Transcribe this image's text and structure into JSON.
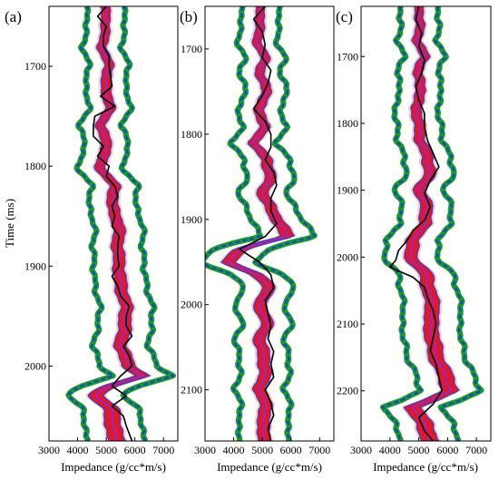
{
  "figure": {
    "ylabel": "Time (ms)",
    "xlabel_common": "Impedance (g/cc*m/s)"
  },
  "colors": {
    "band_outer": "#1a9a2e",
    "band_outer_soft": "#7fd88a",
    "band_mid": "#1e3fc8",
    "band_inner": "#e0182d",
    "band_inner_soft": "#f4a0a8",
    "core": "#8a2be2",
    "true_log": "#000000"
  },
  "chart_data": [
    {
      "type": "line",
      "panel_label": "(a)",
      "xlabel": "Impedance (g/cc*m/s)",
      "ylabel": "Time (ms)",
      "xlim": [
        3000,
        7500
      ],
      "ylim": [
        1640,
        2075
      ],
      "y_inverted": true,
      "xticks": [
        "3000",
        "4000",
        "5000",
        "6000",
        "7000"
      ],
      "yticks": [
        "1700",
        "1800",
        "1900",
        "2000"
      ],
      "ytick_values": [
        1700,
        1800,
        1900,
        2000
      ],
      "profile": {
        "t": [
          1640,
          1660,
          1680,
          1700,
          1720,
          1740,
          1760,
          1780,
          1800,
          1820,
          1840,
          1860,
          1880,
          1900,
          1920,
          1940,
          1960,
          1980,
          2000,
          2010,
          2020,
          2030,
          2045,
          2060,
          2075
        ],
        "mean": [
          4950,
          5000,
          4850,
          5100,
          4950,
          5150,
          4800,
          5050,
          4750,
          5300,
          5200,
          5450,
          5400,
          5450,
          5500,
          5700,
          5650,
          5500,
          5800,
          6250,
          5100,
          4600,
          5250,
          5200,
          5400
        ],
        "inner_halfwidth": [
          150,
          150,
          160,
          160,
          170,
          170,
          170,
          180,
          180,
          190,
          190,
          200,
          200,
          200,
          210,
          210,
          220,
          220,
          230,
          250,
          260,
          270,
          280,
          280,
          280
        ],
        "outer_halfwidth": [
          650,
          660,
          680,
          690,
          700,
          720,
          740,
          760,
          780,
          800,
          820,
          840,
          860,
          880,
          900,
          920,
          940,
          960,
          1000,
          1050,
          1000,
          950,
          980,
          1000,
          1000
        ]
      },
      "true_log": {
        "t": [
          1640,
          1650,
          1660,
          1670,
          1680,
          1690,
          1700,
          1710,
          1720,
          1730,
          1740,
          1750,
          1760,
          1770,
          1780,
          1790,
          1800,
          1810,
          1820,
          1830,
          1840,
          1850,
          1860,
          1870,
          1880,
          1890,
          1900,
          1910,
          1920,
          1930,
          1940,
          1950,
          1960,
          1970,
          1980,
          1990,
          2000,
          2010,
          2020,
          2030,
          2040,
          2050,
          2060,
          2075
        ],
        "values": [
          5000,
          4700,
          5000,
          4900,
          4900,
          5100,
          5100,
          5150,
          5200,
          4800,
          5300,
          4600,
          4550,
          4550,
          4900,
          4700,
          5100,
          5000,
          5300,
          5400,
          5200,
          5300,
          5200,
          5450,
          5400,
          5400,
          5450,
          5200,
          5400,
          5500,
          5800,
          5700,
          5700,
          5900,
          5600,
          5800,
          5900,
          5500,
          5200,
          5700,
          5200,
          5600,
          5700,
          5900
        ]
      }
    },
    {
      "type": "line",
      "panel_label": "(b)",
      "xlabel": "Impedance (g/cc*m/s)",
      "ylabel": "",
      "xlim": [
        3000,
        7500
      ],
      "ylim": [
        1650,
        2160
      ],
      "y_inverted": true,
      "xticks": [
        "3000",
        "4000",
        "5000",
        "6000",
        "7000"
      ],
      "yticks": [
        "1700",
        "1800",
        "1900",
        "2000",
        "2100"
      ],
      "ytick_values": [
        1700,
        1800,
        1900,
        2000,
        2100
      ],
      "profile": {
        "t": [
          1650,
          1670,
          1690,
          1710,
          1730,
          1750,
          1770,
          1790,
          1810,
          1830,
          1850,
          1870,
          1890,
          1905,
          1920,
          1935,
          1950,
          1965,
          1980,
          2000,
          2020,
          2040,
          2060,
          2080,
          2100,
          2120,
          2140,
          2160
        ],
        "mean": [
          4900,
          4950,
          4800,
          5100,
          4900,
          5200,
          4850,
          5100,
          4700,
          5150,
          5300,
          5000,
          5350,
          5600,
          5900,
          4200,
          3800,
          4800,
          5300,
          4850,
          5200,
          4900,
          5050,
          5100,
          4900,
          5150,
          5000,
          5100
        ],
        "inner_halfwidth": [
          140,
          150,
          150,
          160,
          160,
          170,
          170,
          180,
          180,
          190,
          190,
          200,
          200,
          220,
          240,
          250,
          240,
          230,
          220,
          210,
          210,
          210,
          210,
          210,
          210,
          210,
          210,
          210
        ],
        "outer_halfwidth": [
          650,
          660,
          680,
          700,
          710,
          720,
          740,
          760,
          780,
          800,
          820,
          840,
          860,
          900,
          950,
          980,
          950,
          900,
          880,
          860,
          860,
          860,
          860,
          860,
          860,
          860,
          860,
          860
        ]
      },
      "true_log": {
        "t": [
          1650,
          1665,
          1680,
          1695,
          1710,
          1725,
          1740,
          1755,
          1770,
          1785,
          1800,
          1815,
          1830,
          1845,
          1860,
          1875,
          1890,
          1905,
          1920,
          1935,
          1950,
          1965,
          1980,
          1995,
          2010,
          2025,
          2040,
          2055,
          2070,
          2085,
          2100,
          2115,
          2130,
          2145,
          2160
        ],
        "values": [
          5100,
          4700,
          5000,
          5100,
          5000,
          5300,
          5200,
          5000,
          4700,
          5100,
          5300,
          5300,
          5100,
          5400,
          5500,
          5300,
          5300,
          5500,
          5100,
          4200,
          4900,
          5300,
          5400,
          5100,
          5200,
          5300,
          5200,
          5400,
          5300,
          5400,
          5100,
          5300,
          5400,
          5200,
          5300
        ]
      }
    },
    {
      "type": "line",
      "panel_label": "(c)",
      "xlabel": "Impedance (g/cc*m/s)",
      "ylabel": "",
      "xlim": [
        3000,
        7500
      ],
      "ylim": [
        1625,
        2275
      ],
      "y_inverted": true,
      "xticks": [
        "3000",
        "4000",
        "5000",
        "6000",
        "7000"
      ],
      "yticks": [
        "1700",
        "1800",
        "1900",
        "2000",
        "2100",
        "2200"
      ],
      "ytick_values": [
        1700,
        1800,
        1900,
        2000,
        2100,
        2200
      ],
      "profile": {
        "t": [
          1625,
          1650,
          1675,
          1700,
          1725,
          1750,
          1775,
          1800,
          1825,
          1850,
          1875,
          1900,
          1925,
          1950,
          1975,
          2000,
          2025,
          2050,
          2075,
          2100,
          2125,
          2150,
          2175,
          2200,
          2225,
          2250,
          2275
        ],
        "mean": [
          5000,
          5050,
          4950,
          5200,
          4950,
          5100,
          4900,
          5000,
          5050,
          5300,
          5400,
          5000,
          5300,
          5200,
          4800,
          4700,
          5250,
          5350,
          5500,
          5400,
          5500,
          5600,
          5900,
          6100,
          4800,
          5200,
          5400
        ],
        "inner_halfwidth": [
          140,
          150,
          150,
          160,
          160,
          170,
          170,
          180,
          180,
          190,
          200,
          200,
          210,
          210,
          220,
          220,
          230,
          240,
          250,
          250,
          260,
          260,
          270,
          280,
          290,
          290,
          290
        ],
        "outer_halfwidth": [
          650,
          660,
          680,
          700,
          710,
          720,
          740,
          760,
          780,
          800,
          820,
          840,
          860,
          880,
          900,
          920,
          950,
          980,
          1000,
          1000,
          1000,
          1000,
          1000,
          1050,
          1000,
          1000,
          1000
        ]
      },
      "true_log": {
        "t": [
          1625,
          1645,
          1665,
          1685,
          1705,
          1725,
          1745,
          1765,
          1785,
          1805,
          1825,
          1845,
          1865,
          1885,
          1905,
          1925,
          1945,
          1960,
          1975,
          1990,
          2005,
          2015,
          2030,
          2045,
          2060,
          2080,
          2100,
          2120,
          2140,
          2160,
          2180,
          2200,
          2220,
          2240,
          2260,
          2275
        ],
        "values": [
          5000,
          4900,
          5100,
          5000,
          5200,
          5100,
          4900,
          5000,
          5200,
          5200,
          5300,
          5500,
          5700,
          5400,
          5200,
          5400,
          5200,
          4800,
          4600,
          4300,
          4200,
          4000,
          4800,
          5200,
          5300,
          5500,
          5600,
          5500,
          5400,
          5600,
          5700,
          5800,
          5500,
          5000,
          5200,
          5500
        ]
      }
    }
  ]
}
